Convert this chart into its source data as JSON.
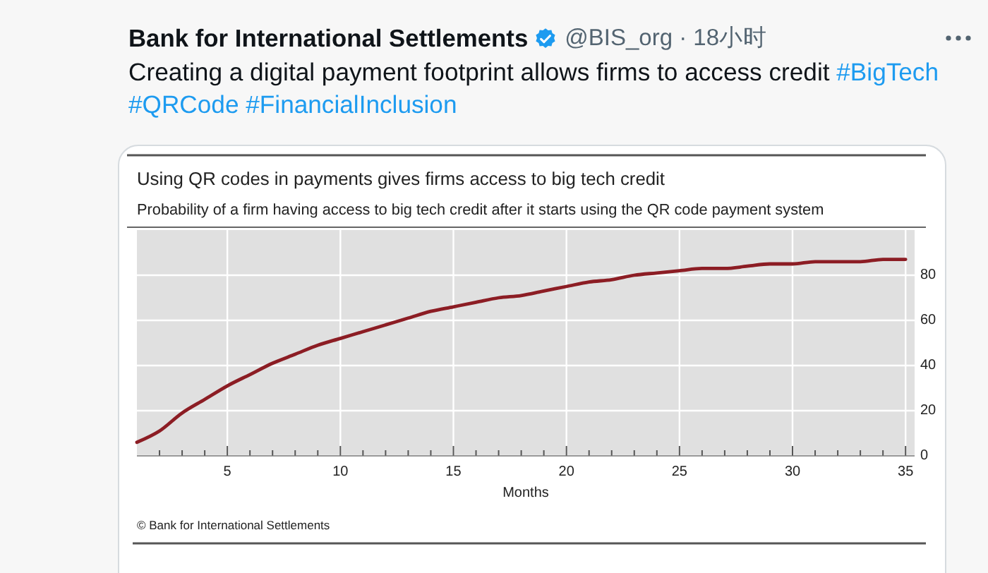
{
  "chart_data": {
    "type": "line",
    "title": "Using QR codes in payments gives firms access to big tech credit",
    "subtitle": "Probability of a firm having access to big tech credit after it starts using the QR code payment system",
    "xlabel": "Months",
    "annotations": [
      "Bank for International Settlements",
      "@BIS_org · 18小时",
      "Creating a digital payment footprint allows firms to access credit",
      "#BigTech #QRCode #FinancialInclusion",
      "© Bank for International Settlements"
    ],
    "x": [
      1,
      2,
      3,
      4,
      5,
      6,
      7,
      8,
      9,
      10,
      11,
      12,
      13,
      14,
      15,
      16,
      17,
      18,
      19,
      20,
      21,
      22,
      23,
      24,
      25,
      26,
      27,
      28,
      29,
      30,
      31,
      32,
      33,
      34,
      35
    ],
    "values": [
      6,
      11,
      19,
      25,
      31,
      36,
      41,
      45,
      49,
      52,
      55,
      58,
      61,
      64,
      66,
      68,
      70,
      71,
      73,
      75,
      77,
      78,
      80,
      81,
      82,
      83,
      83,
      84,
      85,
      85,
      86,
      86,
      86,
      87,
      87
    ],
    "color": "#8c1d24",
    "xlim": [
      1,
      35.4
    ],
    "xticks": [
      {
        "value": 2,
        "label": null
      },
      {
        "value": 3,
        "label": null
      },
      {
        "value": 4,
        "label": null
      },
      5,
      {
        "value": 6,
        "label": null
      },
      {
        "value": 7,
        "label": null
      },
      {
        "value": 8,
        "label": null
      },
      {
        "value": 9,
        "label": null
      },
      10,
      {
        "value": 11,
        "label": null
      },
      {
        "value": 12,
        "label": null
      },
      {
        "value": 13,
        "label": null
      },
      {
        "value": 14,
        "label": null
      },
      15,
      {
        "value": 16,
        "label": null
      },
      {
        "value": 17,
        "label": null
      },
      {
        "value": 18,
        "label": null
      },
      {
        "value": 19,
        "label": null
      },
      20,
      {
        "value": 21,
        "label": null
      },
      {
        "value": 22,
        "label": null
      },
      {
        "value": 23,
        "label": null
      },
      {
        "value": 24,
        "label": null
      },
      25,
      {
        "value": 26,
        "label": null
      },
      {
        "value": 27,
        "label": null
      },
      {
        "value": 28,
        "label": null
      },
      {
        "value": 29,
        "label": null
      },
      30,
      {
        "value": 31,
        "label": null
      },
      {
        "value": 32,
        "label": null
      },
      {
        "value": 33,
        "label": null
      },
      {
        "value": 34,
        "label": null
      },
      35
    ],
    "ylim": [
      0,
      100
    ],
    "yticks": [
      0,
      20,
      40,
      60,
      80
    ],
    "grid": true
  }
}
